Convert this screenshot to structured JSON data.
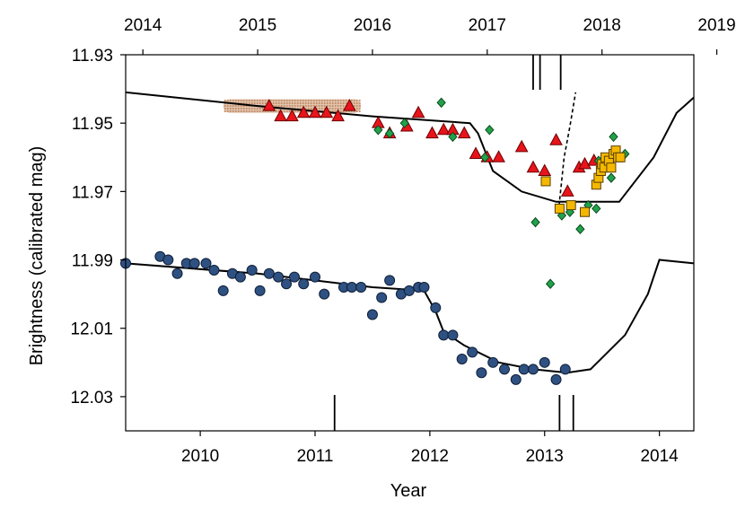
{
  "chart_data": {
    "type": "scatter",
    "xlabel": "Year",
    "ylabel": "Brightness (calibrated mag)",
    "bottom_axis": {
      "range": [
        2009.35,
        2014.3
      ],
      "ticks": [
        2010,
        2011,
        2012,
        2013,
        2014
      ],
      "tick_labels": [
        "2010",
        "2011",
        "2012",
        "2013",
        "2014"
      ]
    },
    "top_axis": {
      "range": [
        2013.85,
        2018.8
      ],
      "ticks": [
        2014,
        2015,
        2016,
        2017,
        2018,
        2019
      ],
      "tick_labels": [
        "2014",
        "2015",
        "2016",
        "2017",
        "2018",
        "2019"
      ]
    },
    "y_axis": {
      "range": [
        11.93,
        12.04
      ],
      "inverted": true,
      "ticks": [
        11.93,
        11.95,
        11.97,
        11.99,
        12.01,
        12.03
      ],
      "tick_labels": [
        "11.93",
        "11.95",
        "11.97",
        "11.99",
        "12.01",
        "12.03"
      ]
    },
    "grid": false,
    "colors": {
      "triangle": "#e8141b",
      "diamond": "#21a24a",
      "square": "#f5b800",
      "circle": "#2e5182",
      "band": "#d9b497",
      "line": "#000000"
    },
    "top_event_ticks": [
      17.4,
      17.46,
      17.64
    ],
    "bottom_event_ticks": [
      2011.17,
      2013.13,
      2013.25
    ],
    "model_upper_top_axis": [
      [
        13.85,
        11.941
      ],
      [
        15.0,
        11.945
      ],
      [
        16.0,
        11.948
      ],
      [
        16.85,
        11.95
      ],
      [
        16.92,
        11.953
      ],
      [
        17.05,
        11.964
      ],
      [
        17.3,
        11.97
      ],
      [
        17.6,
        11.973
      ],
      [
        18.0,
        11.973
      ],
      [
        18.15,
        11.973
      ],
      [
        18.45,
        11.96
      ],
      [
        18.65,
        11.947
      ],
      [
        18.85,
        11.941
      ],
      [
        19.1,
        11.942
      ]
    ],
    "model_lower_bottom_axis": [
      [
        2009.35,
        11.991
      ],
      [
        2010.5,
        11.994
      ],
      [
        2011.5,
        11.998
      ],
      [
        2011.95,
        11.999
      ],
      [
        2012.05,
        12.005
      ],
      [
        2012.12,
        12.011
      ],
      [
        2012.3,
        12.015
      ],
      [
        2012.6,
        12.02
      ],
      [
        2012.9,
        12.022
      ],
      [
        2013.2,
        12.023
      ],
      [
        2013.4,
        12.022
      ],
      [
        2013.7,
        12.012
      ],
      [
        2013.9,
        12.0
      ],
      [
        2014.0,
        11.99
      ],
      [
        2014.3,
        11.991
      ]
    ],
    "dashed_segment_top_axis": [
      [
        17.62,
        11.976
      ],
      [
        17.67,
        11.96
      ],
      [
        17.72,
        11.951
      ],
      [
        17.77,
        11.941
      ]
    ],
    "band_top_axis": {
      "x_range": [
        14.7,
        15.9
      ],
      "y_range": [
        11.943,
        11.947
      ]
    },
    "series": [
      {
        "marker": "triangle",
        "axis": "top",
        "points": [
          [
            15.1,
            11.945
          ],
          [
            15.2,
            11.948
          ],
          [
            15.3,
            11.948
          ],
          [
            15.4,
            11.947
          ],
          [
            15.5,
            11.947
          ],
          [
            15.6,
            11.947
          ],
          [
            15.7,
            11.948
          ],
          [
            15.8,
            11.945
          ],
          [
            16.05,
            11.95
          ],
          [
            16.15,
            11.953
          ],
          [
            16.3,
            11.951
          ],
          [
            16.4,
            11.947
          ],
          [
            16.52,
            11.953
          ],
          [
            16.62,
            11.952
          ],
          [
            16.7,
            11.952
          ],
          [
            16.8,
            11.953
          ],
          [
            16.9,
            11.959
          ],
          [
            17.0,
            11.96
          ],
          [
            17.1,
            11.96
          ],
          [
            17.3,
            11.957
          ],
          [
            17.4,
            11.963
          ],
          [
            17.5,
            11.964
          ],
          [
            17.6,
            11.955
          ],
          [
            17.7,
            11.97
          ],
          [
            17.8,
            11.963
          ],
          [
            17.85,
            11.962
          ],
          [
            17.93,
            11.961
          ]
        ]
      },
      {
        "marker": "diamond",
        "axis": "top",
        "points": [
          [
            16.05,
            11.952
          ],
          [
            16.15,
            11.953
          ],
          [
            16.28,
            11.95
          ],
          [
            16.6,
            11.944
          ],
          [
            16.7,
            11.954
          ],
          [
            16.98,
            11.96
          ],
          [
            17.02,
            11.952
          ],
          [
            17.42,
            11.979
          ],
          [
            17.55,
            11.997
          ],
          [
            17.65,
            11.977
          ],
          [
            17.72,
            11.976
          ],
          [
            17.81,
            11.981
          ],
          [
            17.88,
            11.974
          ],
          [
            17.95,
            11.975
          ],
          [
            17.97,
            11.961
          ],
          [
            18.05,
            11.962
          ],
          [
            18.08,
            11.966
          ],
          [
            18.1,
            11.954
          ],
          [
            18.2,
            11.959
          ]
        ]
      },
      {
        "marker": "square",
        "axis": "top",
        "points": [
          [
            17.51,
            11.967
          ],
          [
            17.63,
            11.975
          ],
          [
            17.73,
            11.974
          ],
          [
            17.85,
            11.976
          ],
          [
            17.95,
            11.968
          ],
          [
            17.97,
            11.966
          ],
          [
            17.99,
            11.964
          ],
          [
            18.0,
            11.962
          ],
          [
            18.02,
            11.963
          ],
          [
            18.03,
            11.96
          ],
          [
            18.06,
            11.961
          ],
          [
            18.08,
            11.963
          ],
          [
            18.1,
            11.959
          ],
          [
            18.12,
            11.958
          ],
          [
            18.14,
            11.96
          ],
          [
            18.16,
            11.96
          ]
        ]
      },
      {
        "marker": "circle",
        "axis": "bottom",
        "points": [
          [
            2009.35,
            11.991
          ],
          [
            2009.65,
            11.989
          ],
          [
            2009.72,
            11.99
          ],
          [
            2009.8,
            11.994
          ],
          [
            2009.88,
            11.991
          ],
          [
            2009.95,
            11.991
          ],
          [
            2010.05,
            11.991
          ],
          [
            2010.12,
            11.993
          ],
          [
            2010.2,
            11.999
          ],
          [
            2010.28,
            11.994
          ],
          [
            2010.35,
            11.995
          ],
          [
            2010.45,
            11.993
          ],
          [
            2010.52,
            11.999
          ],
          [
            2010.6,
            11.994
          ],
          [
            2010.68,
            11.995
          ],
          [
            2010.75,
            11.997
          ],
          [
            2010.82,
            11.995
          ],
          [
            2010.9,
            11.997
          ],
          [
            2011.0,
            11.995
          ],
          [
            2011.08,
            12.0
          ],
          [
            2011.25,
            11.998
          ],
          [
            2011.32,
            11.998
          ],
          [
            2011.4,
            11.998
          ],
          [
            2011.5,
            12.006
          ],
          [
            2011.58,
            12.001
          ],
          [
            2011.65,
            11.996
          ],
          [
            2011.75,
            12.0
          ],
          [
            2011.82,
            11.999
          ],
          [
            2011.9,
            11.998
          ],
          [
            2011.95,
            11.998
          ],
          [
            2012.05,
            12.004
          ],
          [
            2012.12,
            12.012
          ],
          [
            2012.2,
            12.012
          ],
          [
            2012.28,
            12.019
          ],
          [
            2012.37,
            12.017
          ],
          [
            2012.45,
            12.023
          ],
          [
            2012.55,
            12.02
          ],
          [
            2012.65,
            12.022
          ],
          [
            2012.75,
            12.025
          ],
          [
            2012.82,
            12.022
          ],
          [
            2012.9,
            12.022
          ],
          [
            2013.0,
            12.02
          ],
          [
            2013.1,
            12.025
          ],
          [
            2013.18,
            12.022
          ]
        ]
      }
    ]
  }
}
